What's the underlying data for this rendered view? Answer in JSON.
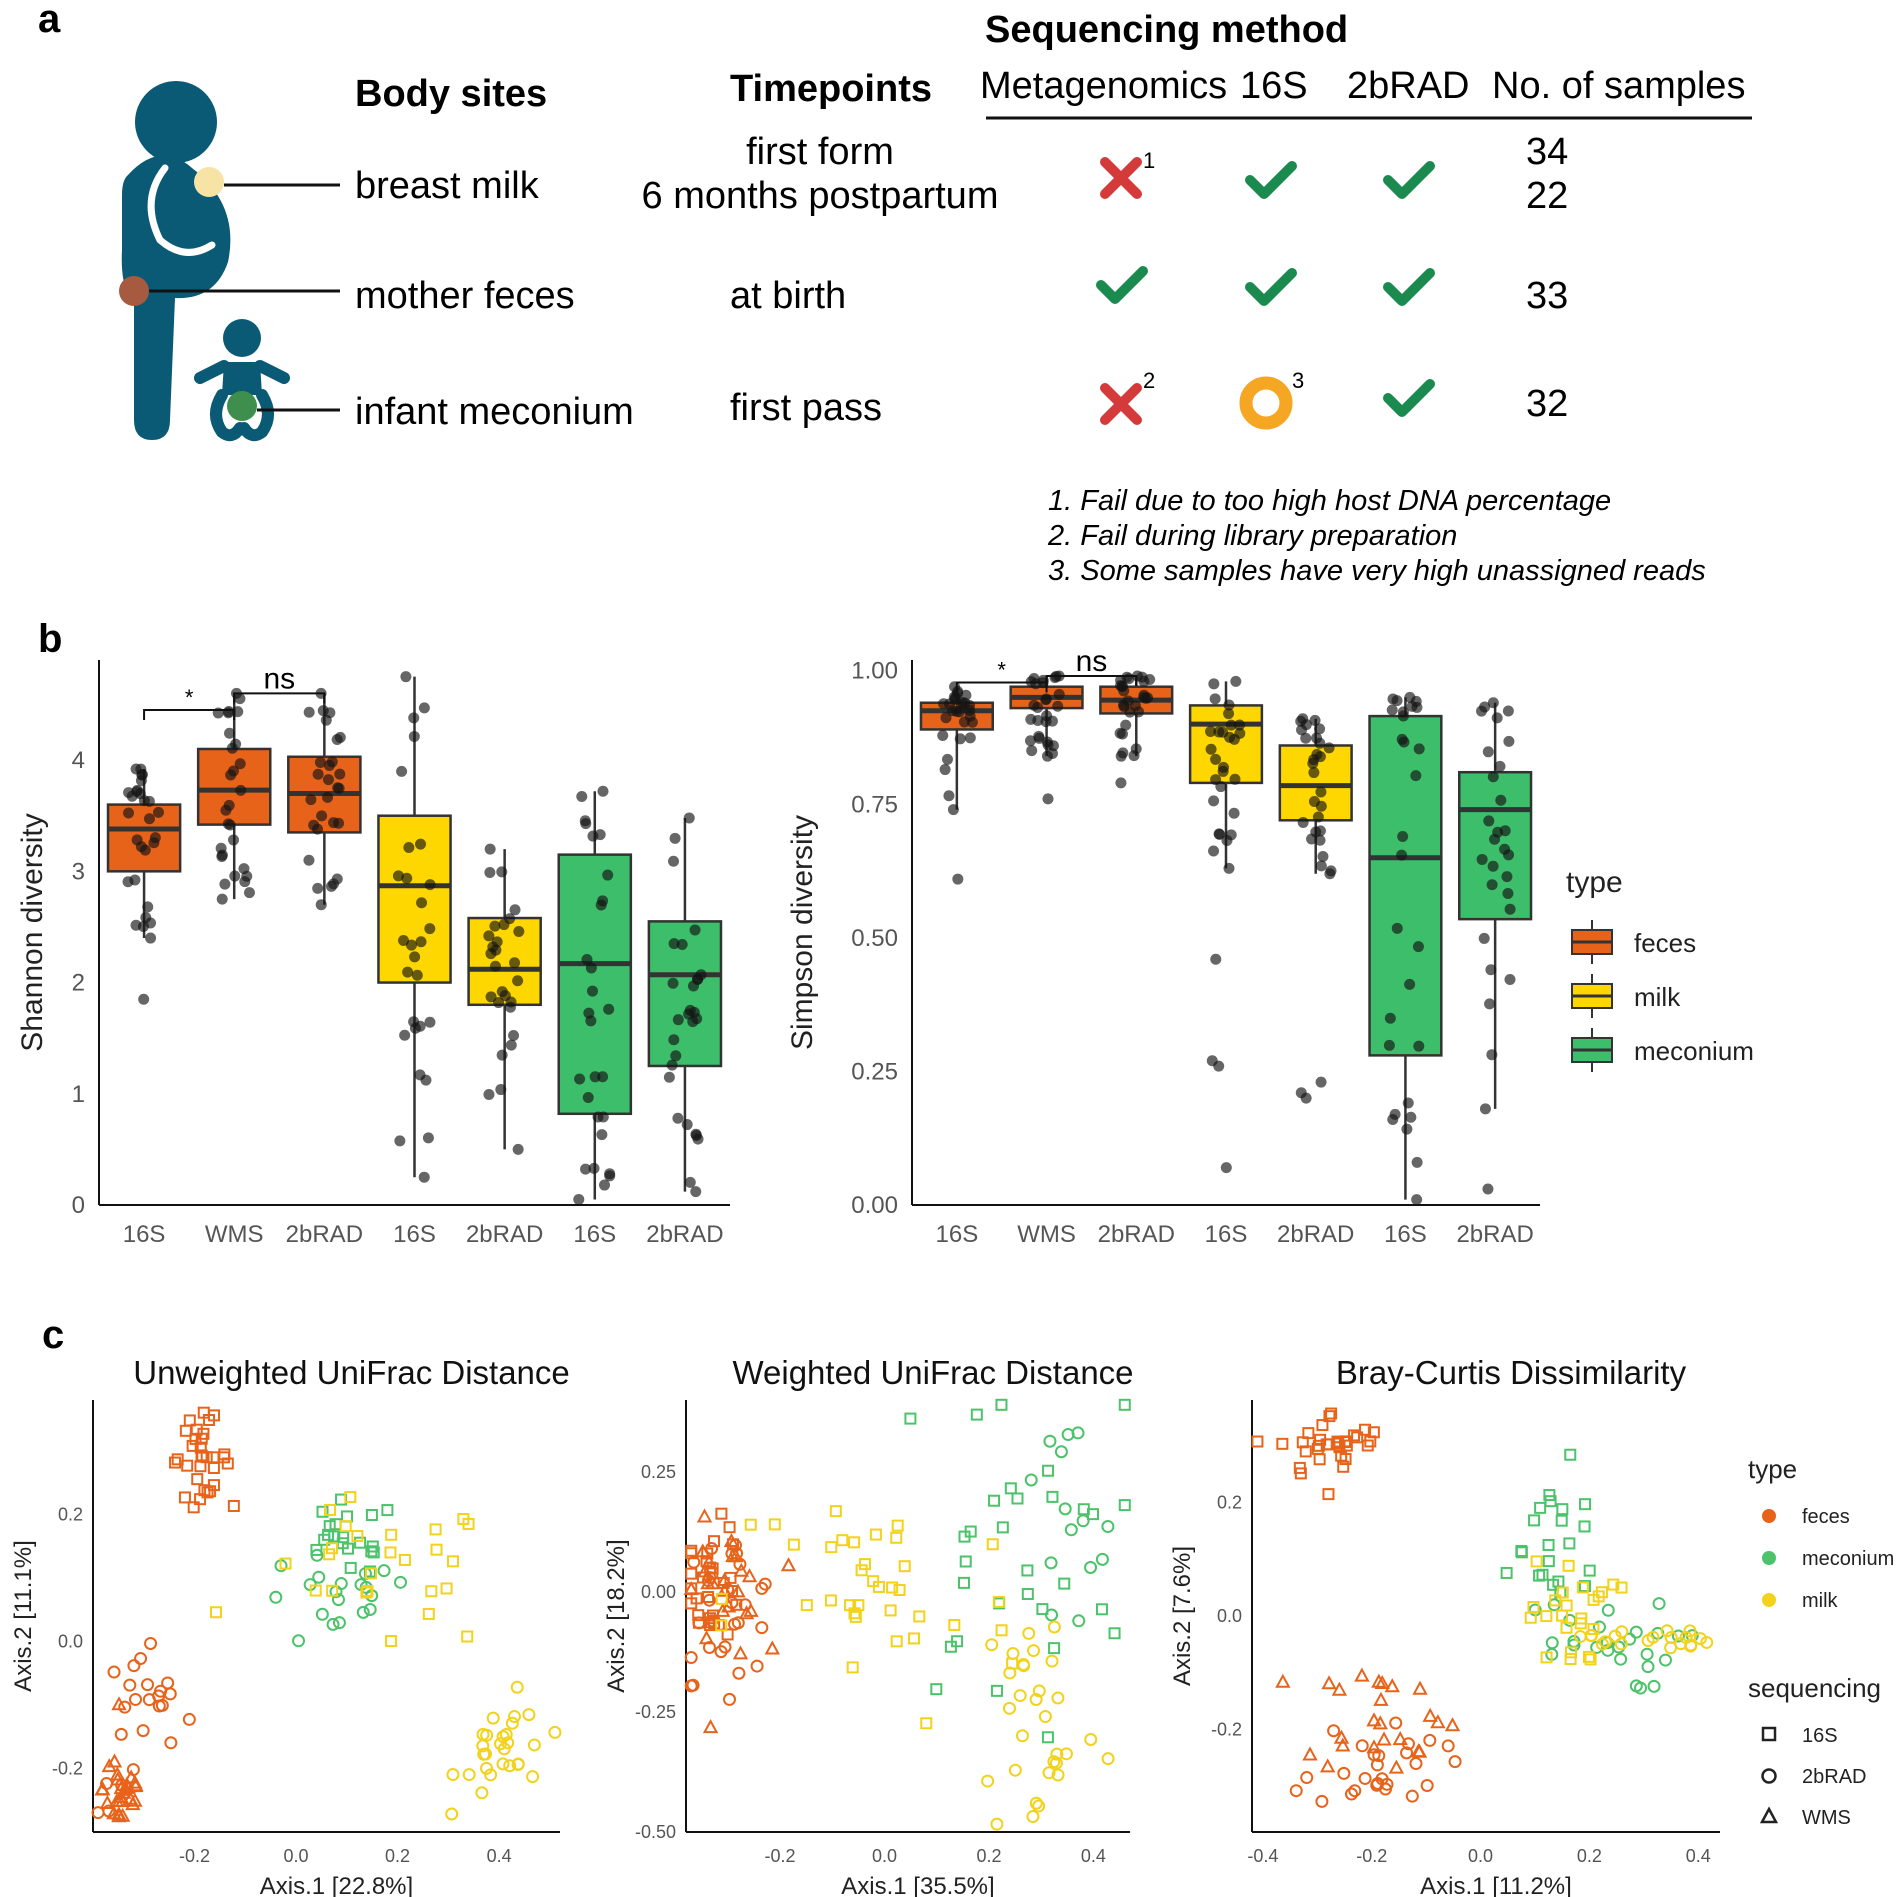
{
  "panels": {
    "a": "a",
    "b": "b",
    "c": "c"
  },
  "colors": {
    "feces": "#E8631A",
    "milk": "#FFD700",
    "meconium": "#3DBE6A",
    "check": "#1A8A4E",
    "cross": "#D43A3A",
    "ring": "#F5A623",
    "figure": "#0B5A75",
    "pcoa_feces": "#E8631A",
    "pcoa_meconium": "#4CC26A",
    "pcoa_milk": "#F2D21B"
  },
  "panel_a": {
    "body_sites_header": "Body sites",
    "timepoints_header": "Timepoints",
    "sequencing_header": "Sequencing method",
    "columns": [
      "Metagenomics",
      "16S",
      "2bRAD",
      "No. of samples"
    ],
    "rows": [
      {
        "site": "breast milk",
        "timepoints": [
          "first form",
          "6 months postpartum"
        ],
        "metagenomics": "cross",
        "metagenomics_note": "1",
        "s16": "check",
        "s16_note": "",
        "rad": "check",
        "samples": [
          "34",
          "22"
        ]
      },
      {
        "site": "mother feces",
        "timepoints": [
          "at birth"
        ],
        "metagenomics": "check",
        "metagenomics_note": "",
        "s16": "check",
        "s16_note": "",
        "rad": "check",
        "samples": [
          "33"
        ]
      },
      {
        "site": "infant meconium",
        "timepoints": [
          "first pass"
        ],
        "metagenomics": "cross",
        "metagenomics_note": "2",
        "s16": "ring",
        "s16_note": "3",
        "rad": "check",
        "samples": [
          "32"
        ]
      }
    ],
    "notes": [
      "1. Fail due to too high host DNA percentage",
      "2. Fail during library preparation",
      "3. Some samples have very high unassigned reads"
    ]
  },
  "chart_data": [
    {
      "type": "box",
      "ylabel": "Shannon diversity",
      "ylim": [
        0,
        4.9
      ],
      "yticks": [
        0,
        1,
        2,
        3,
        4
      ],
      "categories": [
        "16S",
        "WMS",
        "2bRAD",
        "16S",
        "2bRAD",
        "16S",
        "2bRAD"
      ],
      "groups": [
        "feces",
        "feces",
        "feces",
        "milk",
        "milk",
        "meconium",
        "meconium"
      ],
      "boxes": [
        {
          "q1": 3.0,
          "median": 3.38,
          "q3": 3.6,
          "min": 2.4,
          "max": 3.92,
          "outliers": [
            1.85
          ]
        },
        {
          "q1": 3.42,
          "median": 3.73,
          "q3": 4.1,
          "min": 2.75,
          "max": 4.6,
          "outliers": []
        },
        {
          "q1": 3.35,
          "median": 3.7,
          "q3": 4.03,
          "min": 2.7,
          "max": 4.6,
          "outliers": []
        },
        {
          "q1": 2.0,
          "median": 2.87,
          "q3": 3.5,
          "min": 0.25,
          "max": 4.75,
          "outliers": []
        },
        {
          "q1": 1.8,
          "median": 2.12,
          "q3": 2.58,
          "min": 0.5,
          "max": 3.2,
          "outliers": []
        },
        {
          "q1": 0.82,
          "median": 2.17,
          "q3": 3.15,
          "min": 0.05,
          "max": 3.72,
          "outliers": []
        },
        {
          "q1": 1.25,
          "median": 2.07,
          "q3": 2.55,
          "min": 0.12,
          "max": 3.48,
          "outliers": []
        }
      ],
      "significance": [
        {
          "from": 0,
          "to": 1,
          "label": "*",
          "y": 4.45
        },
        {
          "from": 1,
          "to": 2,
          "label": "ns",
          "y": 4.6
        }
      ]
    },
    {
      "type": "box",
      "ylabel": "Simpson diversity",
      "ylim": [
        0,
        1.02
      ],
      "yticks": [
        0.0,
        0.25,
        0.5,
        0.75,
        1.0
      ],
      "ytick_labels": [
        "0.00",
        "0.25",
        "0.50",
        "0.75",
        "1.00"
      ],
      "categories": [
        "16S",
        "WMS",
        "2bRAD",
        "16S",
        "2bRAD",
        "16S",
        "2bRAD"
      ],
      "groups": [
        "feces",
        "feces",
        "feces",
        "milk",
        "milk",
        "meconium",
        "meconium"
      ],
      "boxes": [
        {
          "q1": 0.89,
          "median": 0.925,
          "q3": 0.94,
          "min": 0.74,
          "max": 0.97,
          "outliers": [
            0.61
          ]
        },
        {
          "q1": 0.93,
          "median": 0.95,
          "q3": 0.97,
          "min": 0.84,
          "max": 0.99,
          "outliers": [
            0.76
          ]
        },
        {
          "q1": 0.92,
          "median": 0.945,
          "q3": 0.97,
          "min": 0.84,
          "max": 0.99,
          "outliers": [
            0.79
          ]
        },
        {
          "q1": 0.79,
          "median": 0.9,
          "q3": 0.935,
          "min": 0.63,
          "max": 0.98,
          "outliers": [
            0.46,
            0.27,
            0.26,
            0.07
          ]
        },
        {
          "q1": 0.72,
          "median": 0.785,
          "q3": 0.86,
          "min": 0.62,
          "max": 0.91,
          "outliers": [
            0.23,
            0.21,
            0.2
          ]
        },
        {
          "q1": 0.28,
          "median": 0.65,
          "q3": 0.915,
          "min": 0.01,
          "max": 0.95,
          "outliers": []
        },
        {
          "q1": 0.535,
          "median": 0.74,
          "q3": 0.81,
          "min": 0.18,
          "max": 0.94,
          "outliers": [
            0.03
          ]
        }
      ],
      "significance": [
        {
          "from": 0,
          "to": 1,
          "label": "*",
          "y": 0.978
        },
        {
          "from": 1,
          "to": 2,
          "label": "ns",
          "y": 0.99
        }
      ]
    },
    {
      "type": "scatter",
      "title": "Unweighted UniFrac Distance",
      "xlabel": "Axis.1   [22.8%]",
      "ylabel": "Axis.2   [11.1%]",
      "xlim": [
        -0.4,
        0.52
      ],
      "ylim": [
        -0.3,
        0.38
      ],
      "xticks": [
        -0.2,
        0.0,
        0.2,
        0.4
      ],
      "yticks": [
        -0.2,
        0.0,
        0.2
      ],
      "clusters": [
        {
          "type": "feces",
          "shape": "square",
          "cx": -0.19,
          "cy": 0.29,
          "sx": 0.03,
          "sy": 0.03,
          "n": 32
        },
        {
          "type": "feces",
          "shape": "circle",
          "cx": -0.3,
          "cy": -0.14,
          "sx": 0.05,
          "sy": 0.07,
          "n": 24
        },
        {
          "type": "feces",
          "shape": "triangle",
          "cx": -0.34,
          "cy": -0.23,
          "sx": 0.02,
          "sy": 0.04,
          "n": 30
        },
        {
          "type": "meconium",
          "shape": "square",
          "cx": 0.1,
          "cy": 0.16,
          "sx": 0.05,
          "sy": 0.03,
          "n": 20
        },
        {
          "type": "meconium",
          "shape": "circle",
          "cx": 0.08,
          "cy": 0.06,
          "sx": 0.08,
          "sy": 0.04,
          "n": 20
        },
        {
          "type": "milk",
          "shape": "square",
          "cx": 0.16,
          "cy": 0.1,
          "sx": 0.12,
          "sy": 0.06,
          "n": 26
        },
        {
          "type": "milk",
          "shape": "circle",
          "cx": 0.42,
          "cy": -0.17,
          "sx": 0.05,
          "sy": 0.04,
          "n": 28
        }
      ]
    },
    {
      "type": "scatter",
      "title": "Weighted UniFrac Distance",
      "xlabel": "Axis.1   [35.5%]",
      "ylabel": "Axis.2   [18.2%]",
      "xlim": [
        -0.38,
        0.47
      ],
      "ylim": [
        -0.5,
        0.4
      ],
      "xticks": [
        -0.2,
        0.0,
        0.2,
        0.4
      ],
      "yticks": [
        -0.5,
        -0.25,
        0.0,
        0.25
      ],
      "ytick_labels": [
        "-0.50",
        "-0.25",
        "0.00",
        "0.25"
      ],
      "clusters": [
        {
          "type": "feces",
          "shape": "square",
          "cx": -0.33,
          "cy": 0.02,
          "sx": 0.03,
          "sy": 0.06,
          "n": 30
        },
        {
          "type": "feces",
          "shape": "circle",
          "cx": -0.3,
          "cy": -0.03,
          "sx": 0.05,
          "sy": 0.08,
          "n": 28
        },
        {
          "type": "feces",
          "shape": "triangle",
          "cx": -0.31,
          "cy": 0.0,
          "sx": 0.04,
          "sy": 0.07,
          "n": 24
        },
        {
          "type": "meconium",
          "shape": "square",
          "cx": 0.24,
          "cy": 0.1,
          "sx": 0.12,
          "sy": 0.18,
          "n": 30
        },
        {
          "type": "meconium",
          "shape": "circle",
          "cx": 0.34,
          "cy": 0.1,
          "sx": 0.06,
          "sy": 0.14,
          "n": 14
        },
        {
          "type": "milk",
          "shape": "square",
          "cx": -0.02,
          "cy": -0.02,
          "sx": 0.14,
          "sy": 0.14,
          "n": 36
        },
        {
          "type": "milk",
          "shape": "circle",
          "cx": 0.3,
          "cy": -0.26,
          "sx": 0.06,
          "sy": 0.14,
          "n": 30
        }
      ]
    },
    {
      "type": "scatter",
      "title": "Bray-Curtis Dissimilarity",
      "xlabel": "Axis.1   [11.2%]",
      "ylabel": "Axis.2   [7.6%]",
      "xlim": [
        -0.42,
        0.44
      ],
      "ylim": [
        -0.38,
        0.38
      ],
      "xticks": [
        -0.4,
        -0.2,
        0.0,
        0.2,
        0.4
      ],
      "yticks": [
        -0.2,
        0.0,
        0.2
      ],
      "clusters": [
        {
          "type": "feces",
          "shape": "square",
          "cx": -0.27,
          "cy": 0.3,
          "sx": 0.05,
          "sy": 0.03,
          "n": 32
        },
        {
          "type": "feces",
          "shape": "circle",
          "cx": -0.19,
          "cy": -0.26,
          "sx": 0.06,
          "sy": 0.04,
          "n": 26
        },
        {
          "type": "feces",
          "shape": "triangle",
          "cx": -0.18,
          "cy": -0.17,
          "sx": 0.07,
          "sy": 0.05,
          "n": 24
        },
        {
          "type": "meconium",
          "shape": "square",
          "cx": 0.12,
          "cy": 0.12,
          "sx": 0.07,
          "sy": 0.07,
          "n": 22
        },
        {
          "type": "meconium",
          "shape": "circle",
          "cx": 0.2,
          "cy": -0.05,
          "sx": 0.08,
          "sy": 0.04,
          "n": 26
        },
        {
          "type": "milk",
          "shape": "square",
          "cx": 0.17,
          "cy": 0.0,
          "sx": 0.04,
          "sy": 0.05,
          "n": 24
        },
        {
          "type": "milk",
          "shape": "circle",
          "cx": 0.3,
          "cy": -0.04,
          "sx": 0.06,
          "sy": 0.01,
          "n": 20
        }
      ]
    }
  ],
  "legend_b": {
    "title": "type",
    "items": [
      "feces",
      "milk",
      "meconium"
    ]
  },
  "legend_c": {
    "type_title": "type",
    "type_items": [
      "feces",
      "meconium",
      "milk"
    ],
    "seq_title": "sequencing",
    "seq_items": [
      "16S",
      "2bRAD",
      "WMS"
    ]
  }
}
